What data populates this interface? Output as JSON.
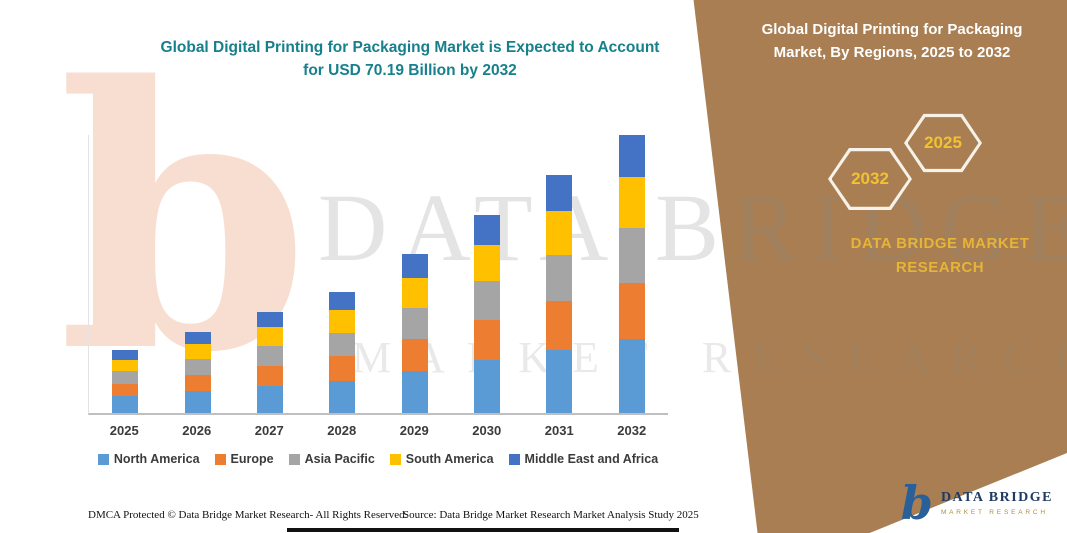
{
  "main": {
    "title": "Global Digital Printing for Packaging Market is Expected to Account for USD 70.19 Billion by 2032"
  },
  "chart_data": {
    "type": "bar",
    "stacked": true,
    "title": "Global Digital Printing for Packaging Market is Expected to Account for USD 70.19 Billion by 2032",
    "value_unit": "USD Billion",
    "categories": [
      "2025",
      "2026",
      "2027",
      "2028",
      "2029",
      "2030",
      "2031",
      "2032"
    ],
    "series": [
      {
        "name": "North America",
        "color": "#5B9BD5",
        "values": [
          4.2,
          5.5,
          6.8,
          8.1,
          10.6,
          13.3,
          16.0,
          18.6
        ]
      },
      {
        "name": "Europe",
        "color": "#ED7D31",
        "values": [
          3.2,
          4.2,
          5.2,
          6.2,
          8.2,
          10.2,
          12.3,
          14.3
        ]
      },
      {
        "name": "Asia Pacific",
        "color": "#A5A5A5",
        "values": [
          3.1,
          4.0,
          5.0,
          6.0,
          7.8,
          9.8,
          11.7,
          13.7
        ]
      },
      {
        "name": "South America",
        "color": "#FFC000",
        "values": [
          2.9,
          3.8,
          4.7,
          5.6,
          7.4,
          9.2,
          11.1,
          12.9
        ]
      },
      {
        "name": "Middle East and Africa",
        "color": "#4472C4",
        "values": [
          2.4,
          3.1,
          3.9,
          4.7,
          6.1,
          7.6,
          9.1,
          10.7
        ]
      }
    ],
    "total_2032": 70.19,
    "ylim": [
      0,
      72
    ],
    "legend_position": "bottom",
    "grid": false
  },
  "panel": {
    "title": "Global Digital Printing for Packaging Market, By Regions, 2025 to 2032",
    "hexagon_left": "2032",
    "hexagon_right": "2025",
    "brand": "DATA BRIDGE MARKET RESEARCH",
    "background_color": "#A87E52",
    "accent_color": "#E6B437"
  },
  "watermark": {
    "letter": "b",
    "line1": "DATA BRIDGE",
    "line2": "MARKET RESEARCH"
  },
  "footer": {
    "dmca": "DMCA Protected © Data Bridge Market Research-  All Rights Reserved.",
    "source": "Source: Data Bridge Market Research  Market Analysis Study 2025"
  },
  "logo": {
    "mark": "b",
    "name": "DATA BRIDGE",
    "tagline": "MARKET RESEARCH"
  }
}
